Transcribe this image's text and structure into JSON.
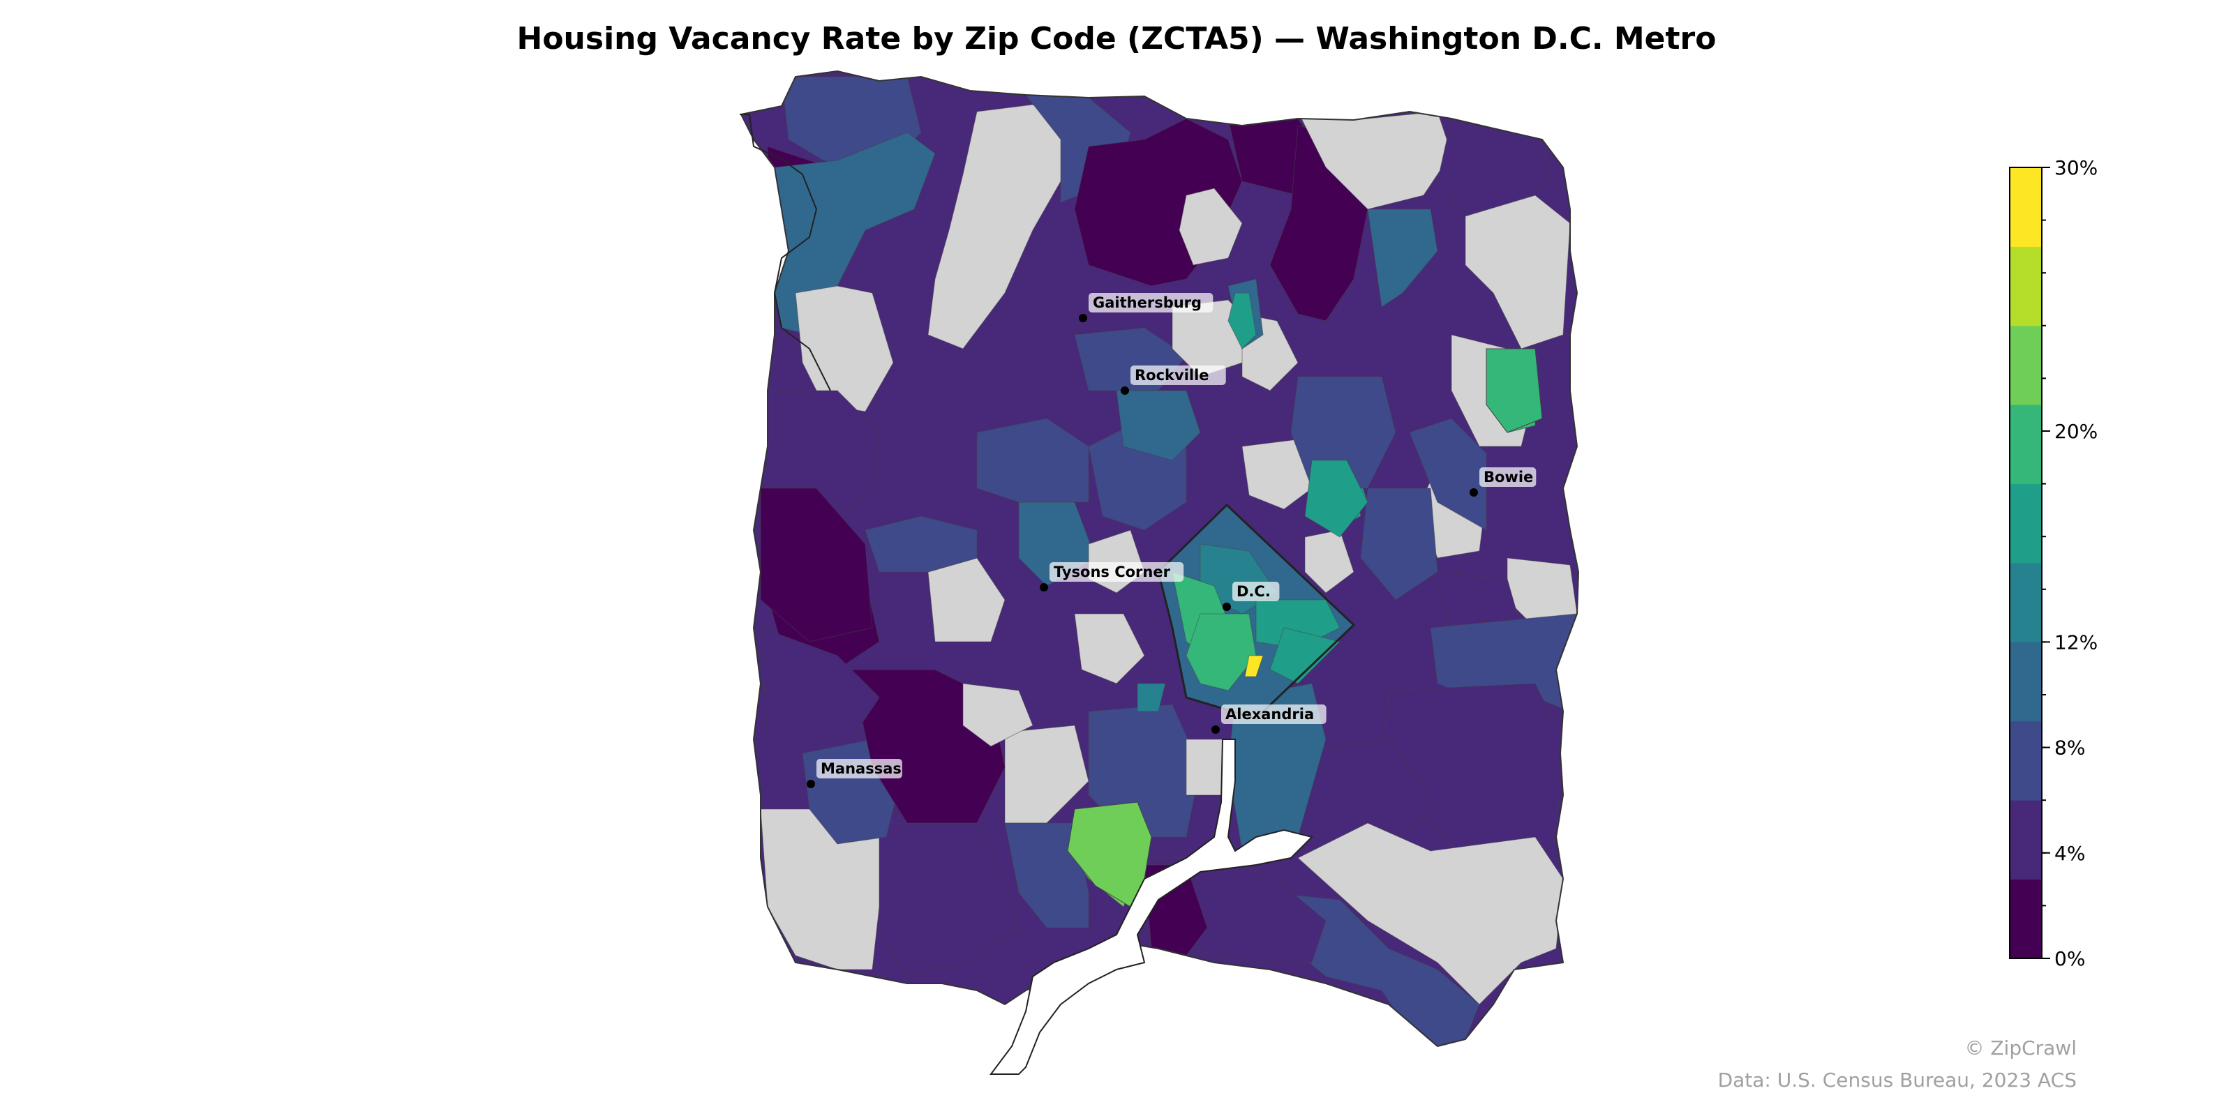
{
  "title": "Housing Vacancy Rate by Zip Code (ZCTA5) — Washington D.C. Metro",
  "colorbar": {
    "min": 0,
    "max": 30,
    "step": 2,
    "tick_labels": [
      "30%",
      "20%",
      "12%",
      "8%",
      "4%",
      "0%"
    ],
    "tick_values": [
      30,
      20,
      12,
      8,
      4,
      0
    ],
    "colors": [
      "#440154",
      "#482878",
      "#3e4a89",
      "#31688e",
      "#26828e",
      "#1f9e89",
      "#35b779",
      "#6ece58",
      "#b5de2b",
      "#fde725"
    ]
  },
  "no_data_color": "#d3d3d3",
  "cities": [
    {
      "name": "Gaithersburg"
    },
    {
      "name": "Rockville"
    },
    {
      "name": "Bowie"
    },
    {
      "name": "Tysons Corner"
    },
    {
      "name": "D.C."
    },
    {
      "name": "Alexandria"
    },
    {
      "name": "Manassas"
    }
  ],
  "credits": {
    "copyright": "© ZipCrawl",
    "source": "Data: U.S. Census Bureau, 2023 ACS"
  }
}
